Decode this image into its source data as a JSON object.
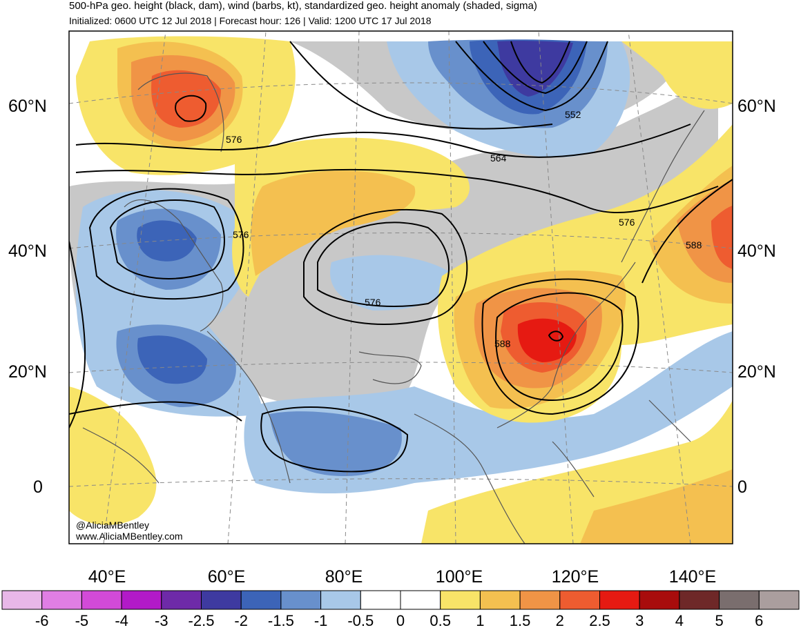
{
  "header": {
    "title": "500-hPa geo. height (black, dam), wind (barbs, kt), standardized geo. height anomaly (shaded, sigma)",
    "subtitle": "Initialized: 0600 UTC 12 Jul 2018 | Forecast hour: 126 | Valid: 1200 UTC 17 Jul 2018"
  },
  "map": {
    "lat_labels": [
      "60°N",
      "40°N",
      "20°N",
      "0"
    ],
    "lon_labels": [
      "40°E",
      "60°E",
      "80°E",
      "100°E",
      "120°E",
      "140°E"
    ],
    "contour_labels": [
      "576",
      "552",
      "564",
      "576",
      "576",
      "588",
      "576",
      "588"
    ],
    "credits": [
      "@AliciaMBentley",
      "www.AliciaMBentley.com"
    ],
    "colors": {
      "land_gray": "#c8c8c8",
      "coast": "#555555"
    }
  },
  "colorbar": {
    "labels": [
      "-6",
      "-5",
      "-4",
      "-3",
      "-2.5",
      "-2",
      "-1.5",
      "-1",
      "-0.5",
      "0",
      "0.5",
      "1",
      "1.5",
      "2",
      "2.5",
      "3",
      "4",
      "5",
      "6"
    ],
    "colors": [
      "#e8b7e8",
      "#e07ee4",
      "#d24ad8",
      "#b21ac8",
      "#6e2aa8",
      "#3e3aa0",
      "#3c64b8",
      "#6890cc",
      "#a8c8e8",
      "#ffffff",
      "#ffffff",
      "#f8e468",
      "#f4c050",
      "#f09446",
      "#ee5c30",
      "#e61a12",
      "#a80c0c",
      "#6e2828",
      "#7a6e6e",
      "#aa9e9e"
    ]
  }
}
